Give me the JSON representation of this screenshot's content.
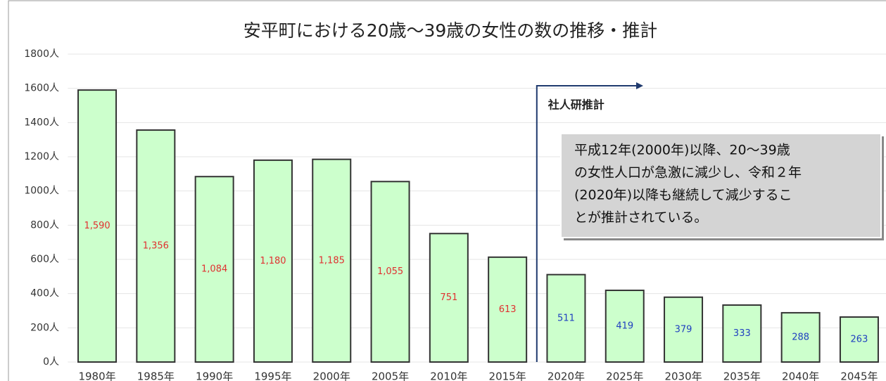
{
  "chart_data": {
    "type": "bar",
    "title": "安平町における20歳～39歳の女性の数の推移・推計",
    "categories": [
      "1980年",
      "1985年",
      "1990年",
      "1995年",
      "2000年",
      "2005年",
      "2010年",
      "2015年",
      "2020年",
      "2025年",
      "2030年",
      "2035年",
      "2040年",
      "2045年"
    ],
    "values": [
      1590,
      1356,
      1084,
      1180,
      1185,
      1055,
      751,
      613,
      511,
      419,
      379,
      333,
      288,
      263
    ],
    "value_labels": [
      "1,590",
      "1,356",
      "1,084",
      "1,180",
      "1,185",
      "1,055",
      "751",
      "613",
      "511",
      "419",
      "379",
      "333",
      "288",
      "263"
    ],
    "color": "#ccffcc",
    "label_color": "#e03030",
    "projection": {
      "label": "社人研推計",
      "from": "2020年",
      "label_color": "#2040c0"
    },
    "ylim": [
      0,
      1800
    ],
    "yticks": [
      {
        "value": 0,
        "label": "0人"
      },
      {
        "value": 200,
        "label": "200人"
      },
      {
        "value": 400,
        "label": "400人"
      },
      {
        "value": 600,
        "label": "600人"
      },
      {
        "value": 800,
        "label": "800人"
      },
      {
        "value": 1000,
        "label": "1000人"
      },
      {
        "value": 1200,
        "label": "1200人"
      },
      {
        "value": 1400,
        "label": "1400人"
      },
      {
        "value": 1600,
        "label": "1600人"
      },
      {
        "value": 1800,
        "label": "1800人"
      }
    ],
    "grid": true,
    "annotation": {
      "lines": [
        "平成12年(2000年)以降、20～39歳",
        "の女性人口が急激に減少し、令和２年",
        "(2020年)以降も継続して減少するこ",
        "とが推計されている。"
      ]
    }
  }
}
